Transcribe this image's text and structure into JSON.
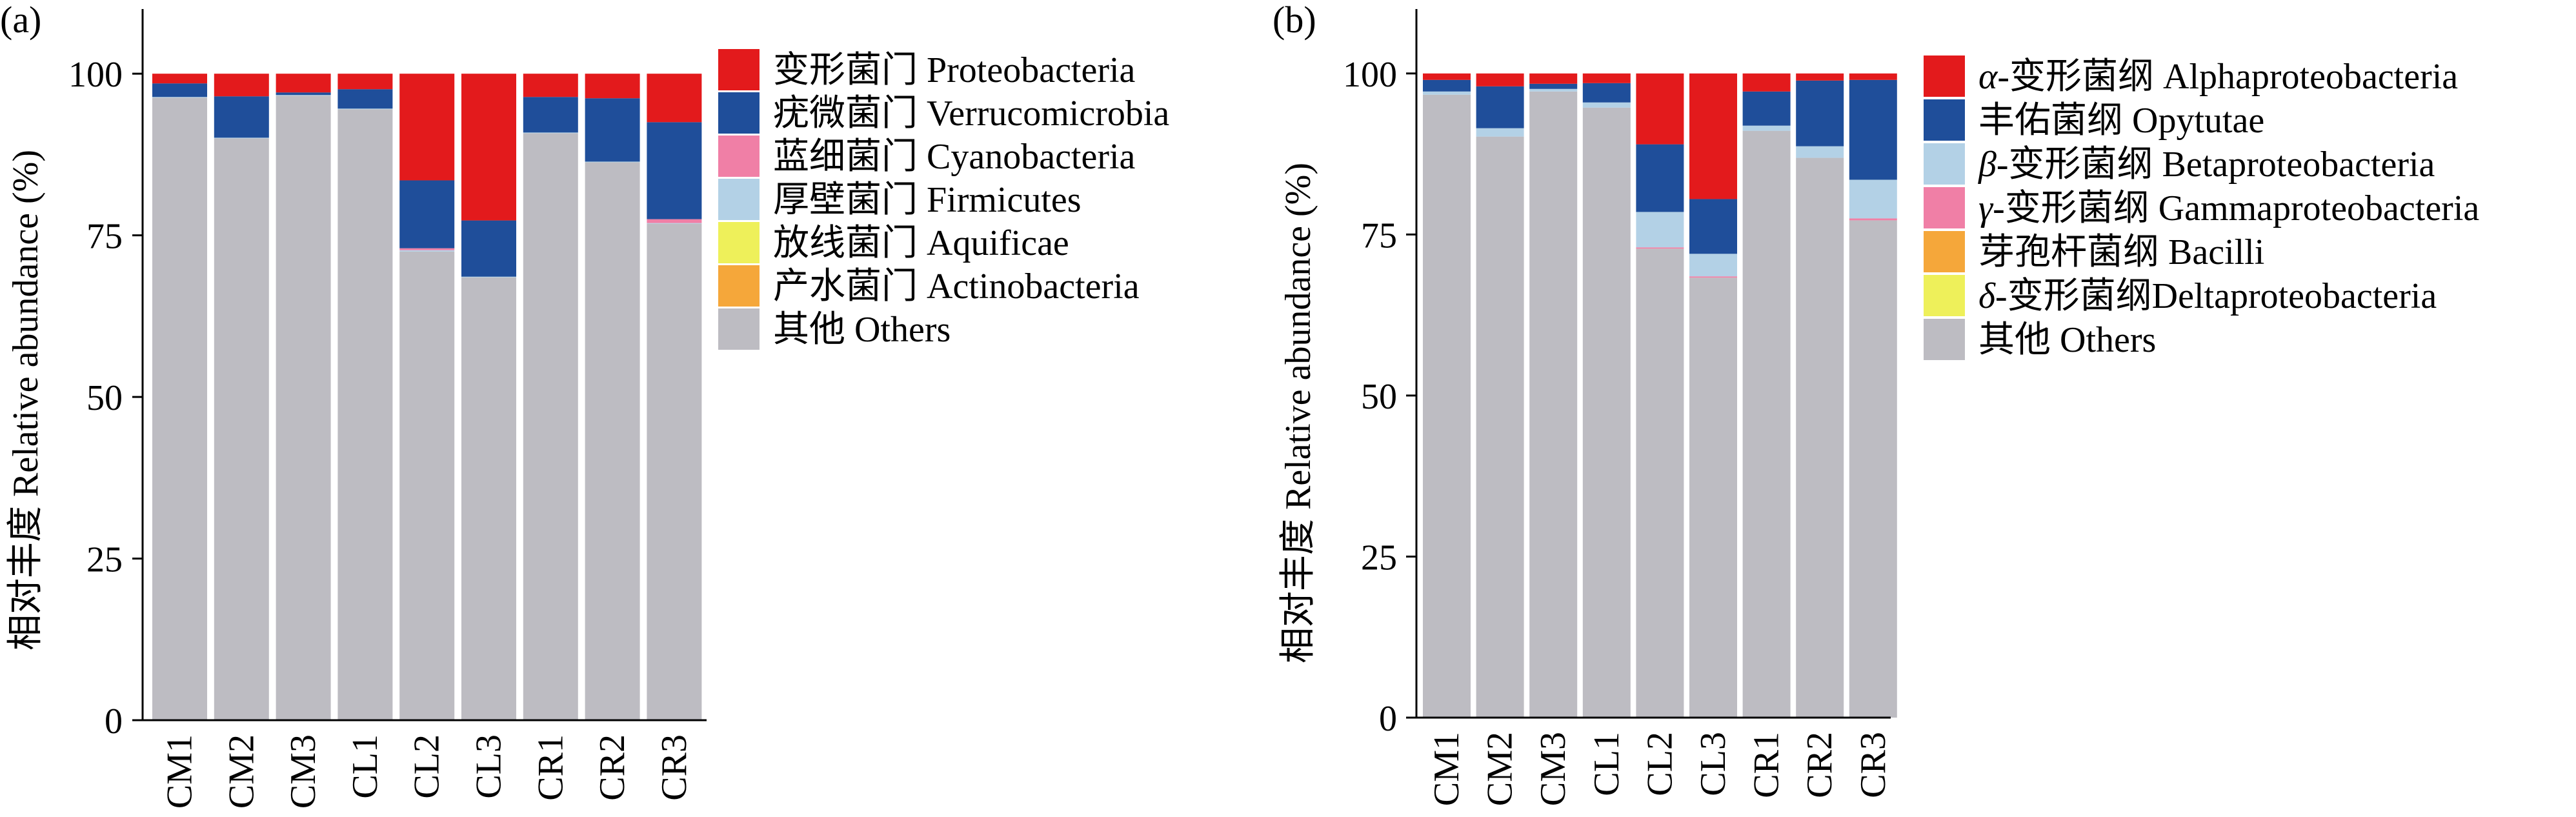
{
  "panels": [
    {
      "panel_label": "(a)",
      "ylabel": "相对丰度 Relative abundance (%)",
      "ticks": [
        "0",
        "25",
        "50",
        "75",
        "100"
      ],
      "legend": [
        {
          "label": "变形菌门 Proteobacteria",
          "color": "#e31a1c"
        },
        {
          "label": "疣微菌门 Verrucomicrobia",
          "color": "#1f4e9a"
        },
        {
          "label": "蓝细菌门 Cyanobacteria",
          "color": "#f07fa6"
        },
        {
          "label": "厚壁菌门 Firmicutes",
          "color": "#b3d1e6"
        },
        {
          "label": "放线菌门 Aquificae",
          "color": "#eef05a"
        },
        {
          "label": "产水菌门 Actinobacteria",
          "color": "#f5a73a"
        },
        {
          "label": "其他 Others",
          "color": "#bdbcc2"
        }
      ]
    },
    {
      "panel_label": "(b)",
      "ylabel": "相对丰度 Relative  abundance (%)",
      "ticks": [
        "0",
        "25",
        "50",
        "75",
        "100"
      ],
      "legend": [
        {
          "prefix": "α",
          "label": "-变形菌纲 Alphaproteobacteria",
          "color": "#e31a1c"
        },
        {
          "prefix": "",
          "label": "丰佑菌纲 Opytutae",
          "color": "#1f4e9a"
        },
        {
          "prefix": "β",
          "label": "-变形菌纲 Betaproteobacteria",
          "color": "#b3d1e6"
        },
        {
          "prefix": "γ",
          "label": "-变形菌纲 Gammaproteobacteria",
          "color": "#f07fa6"
        },
        {
          "prefix": "",
          "label": "芽孢杆菌纲 Bacilli",
          "color": "#f5a73a"
        },
        {
          "prefix": "δ",
          "label": "-变形菌纲Deltaproteobacteria",
          "color": "#eef05a"
        },
        {
          "prefix": "",
          "label": "其他 Others",
          "color": "#bdbcc2"
        }
      ]
    }
  ],
  "chart_data": [
    {
      "type": "bar",
      "stacked": true,
      "title": "",
      "xlabel": "",
      "ylabel": "相对丰度 Relative abundance (%)",
      "ylim": [
        0,
        110
      ],
      "categories": [
        "CM1",
        "CM2",
        "CM3",
        "CL1",
        "CL2",
        "CL3",
        "CR1",
        "CR2",
        "CR3"
      ],
      "series": [
        {
          "name": "其他 Others",
          "color": "#bdbcc2",
          "values": [
            96.3,
            90.0,
            96.6,
            94.5,
            72.5,
            68.5,
            90.8,
            86.3,
            76.8
          ]
        },
        {
          "name": "产水菌门 Actinobacteria",
          "color": "#f5a73a",
          "values": [
            0,
            0,
            0,
            0,
            0,
            0,
            0,
            0,
            0
          ]
        },
        {
          "name": "放线菌门 Aquificae",
          "color": "#eef05a",
          "values": [
            0,
            0,
            0,
            0,
            0,
            0,
            0,
            0,
            0
          ]
        },
        {
          "name": "厚壁菌门 Firmicutes",
          "color": "#b3d1e6",
          "values": [
            0.1,
            0.1,
            0.1,
            0.1,
            0.2,
            0.1,
            0.1,
            0.1,
            0.1
          ]
        },
        {
          "name": "蓝细菌门 Cyanobacteria",
          "color": "#f07fa6",
          "values": [
            0,
            0,
            0,
            0,
            0.3,
            0,
            0,
            0,
            0.6
          ]
        },
        {
          "name": "疣微菌门 Verrucomicrobia",
          "color": "#1f4e9a",
          "values": [
            2.1,
            6.4,
            0.4,
            3.0,
            10.5,
            8.7,
            5.5,
            9.8,
            15.0
          ]
        },
        {
          "name": "变形菌门 Proteobacteria",
          "color": "#e31a1c",
          "values": [
            1.5,
            3.5,
            2.9,
            2.4,
            16.5,
            22.7,
            3.6,
            3.8,
            7.5
          ]
        }
      ]
    },
    {
      "type": "bar",
      "stacked": true,
      "title": "",
      "xlabel": "",
      "ylabel": "相对丰度 Relative  abundance (%)",
      "ylim": [
        0,
        110
      ],
      "categories": [
        "CM1",
        "CM2",
        "CM3",
        "CL1",
        "CL2",
        "CL3",
        "CR1",
        "CR2",
        "CR3"
      ],
      "series": [
        {
          "name": "其他 Others",
          "color": "#bdbcc2",
          "values": [
            96.7,
            90.2,
            97.2,
            94.7,
            72.8,
            68.3,
            91.1,
            86.9,
            77.2
          ]
        },
        {
          "name": "δ-变形菌纲Deltaproteobacteria",
          "color": "#eef05a",
          "values": [
            0,
            0,
            0,
            0,
            0,
            0,
            0,
            0,
            0
          ]
        },
        {
          "name": "芽孢杆菌纲 Bacilli",
          "color": "#f5a73a",
          "values": [
            0,
            0,
            0,
            0,
            0,
            0,
            0,
            0,
            0
          ]
        },
        {
          "name": "γ-变形菌纲 Gammaproteobacteria",
          "color": "#f07fa6",
          "values": [
            0,
            0,
            0,
            0,
            0.2,
            0.2,
            0,
            0,
            0.3
          ]
        },
        {
          "name": "β-变形菌纲 Betaproteobacteria",
          "color": "#b3d1e6",
          "values": [
            0.5,
            1.3,
            0.4,
            0.8,
            5.5,
            3.5,
            0.8,
            1.8,
            6.0
          ]
        },
        {
          "name": "丰佑菌纲 Opytutae",
          "color": "#1f4e9a",
          "values": [
            1.8,
            6.5,
            0.8,
            3.0,
            10.5,
            8.5,
            5.3,
            10.2,
            15.5
          ]
        },
        {
          "name": "α-变形菌纲 Alphaproteobacteria",
          "color": "#e31a1c",
          "values": [
            1.0,
            2.0,
            1.6,
            1.5,
            11.0,
            19.5,
            2.8,
            1.1,
            1.0
          ]
        }
      ]
    }
  ]
}
